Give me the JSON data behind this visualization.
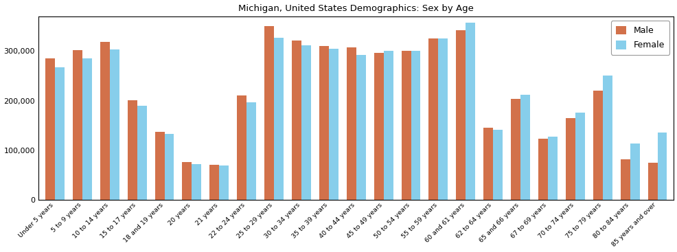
{
  "title": "Michigan, United States Demographics: Sex by Age",
  "categories": [
    "Under 5 years",
    "5 to 9 years",
    "10 to 14 years",
    "15 to 17 years",
    "18 and 19 years",
    "20 years",
    "21 years",
    "22 to 24 years",
    "25 to 29 years",
    "30 to 34 years",
    "35 to 39 years",
    "40 to 44 years",
    "45 to 49 years",
    "50 to 54 years",
    "55 to 59 years",
    "60 and 61 years",
    "62 to 64 years",
    "65 and 66 years",
    "67 to 69 years",
    "70 to 74 years",
    "75 to 79 years",
    "80 to 84 years",
    "85 years and over"
  ],
  "male": [
    285000,
    302000,
    318000,
    201000,
    137000,
    76000,
    71000,
    211000,
    350000,
    322000,
    310000,
    308000,
    296000,
    301000,
    325000,
    342000,
    146000,
    204000,
    123000,
    165000,
    220000,
    82000,
    75000
  ],
  "female": [
    268000,
    285000,
    303000,
    190000,
    133000,
    72000,
    70000,
    197000,
    327000,
    312000,
    305000,
    293000,
    300000,
    300000,
    325000,
    358000,
    142000,
    212000,
    128000,
    176000,
    251000,
    114000,
    136000
  ],
  "male_color": "#d2714a",
  "female_color": "#87ceeb",
  "ylim": [
    0,
    370000
  ],
  "ytick_step": 100000,
  "bar_width": 0.35,
  "figsize": [
    9.87,
    3.67
  ],
  "dpi": 100
}
